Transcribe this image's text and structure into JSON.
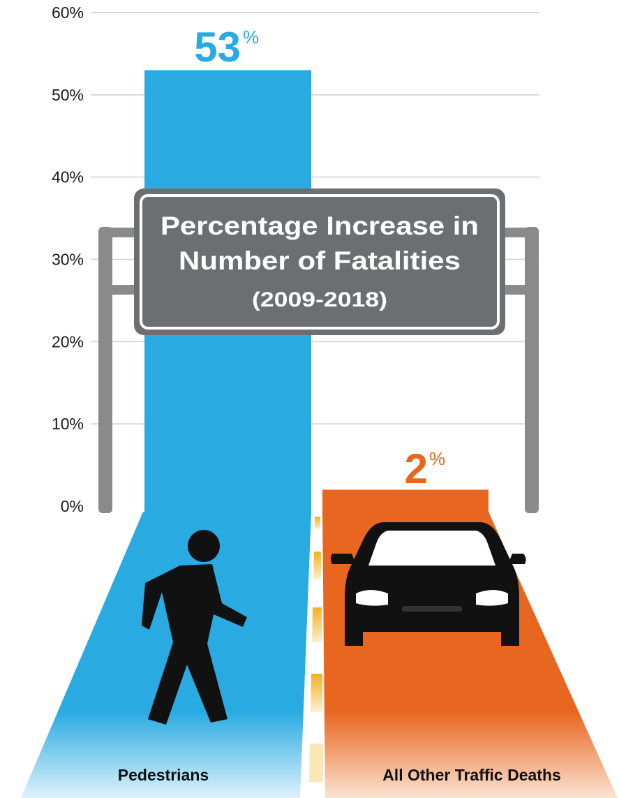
{
  "chart_data": {
    "type": "bar",
    "title": "Percentage Increase in Number of Fatalities",
    "subtitle": "(2009-2018)",
    "categories": [
      "Pedestrians",
      "All Other Traffic Deaths"
    ],
    "values": [
      53,
      2
    ],
    "value_labels": [
      "53",
      "2"
    ],
    "value_suffix": "%",
    "ylim": [
      0,
      60
    ],
    "yticks": [
      0,
      10,
      20,
      30,
      40,
      50,
      60
    ],
    "ytick_labels": [
      "0%",
      "10%",
      "20%",
      "30%",
      "40%",
      "50%",
      "60%"
    ],
    "grid": true,
    "colors": [
      "#29abe2",
      "#e8661f"
    ],
    "icons": [
      "pedestrian-icon",
      "car-icon"
    ]
  }
}
